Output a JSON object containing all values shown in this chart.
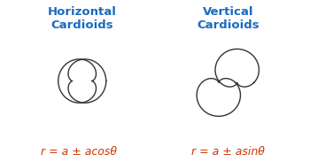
{
  "title_left": "Horizontal\nCardioids",
  "title_right": "Vertical\nCardioids",
  "formula_left": "r = a ± acosθ",
  "formula_right": "r = a ± asinθ",
  "title_color": "#1a6abf",
  "formula_color": "#cc3300",
  "bg_color": "#ffffff",
  "cardioid_color": "#333333",
  "cardioid_linewidth": 1.0,
  "a": 1.0,
  "fig_width": 3.5,
  "fig_height": 1.83,
  "dpi": 100
}
